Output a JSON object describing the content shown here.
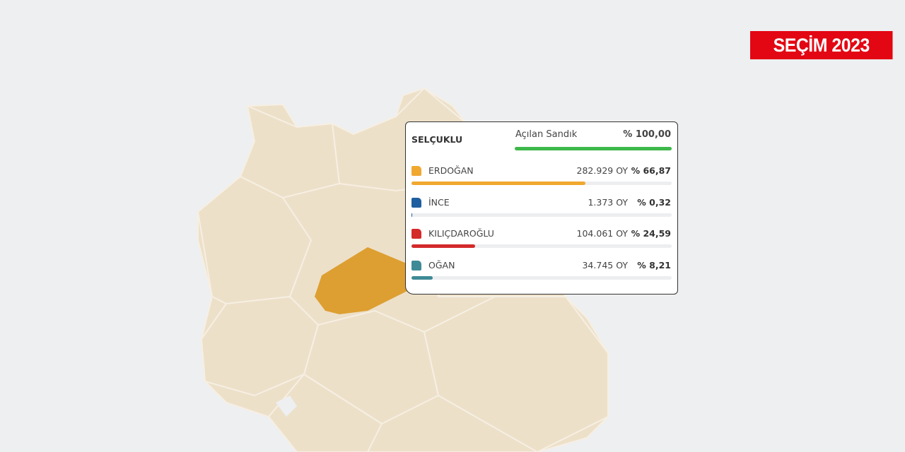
{
  "badge": "SEÇİM 2023",
  "popup": {
    "district": "SELÇUKLU",
    "opened_title": "Açılan Sandık",
    "opened_percent": 100,
    "opened_label": "% 100,00",
    "opened_color": "#3db84a",
    "candidates": [
      {
        "name": "ERDOĞAN",
        "votes_label": "282.929 OY",
        "percent": 66.87,
        "percent_label": "% 66,87",
        "color": "#f0a830"
      },
      {
        "name": "İNCE",
        "votes_label": "1.373 OY",
        "percent": 0.32,
        "percent_label": "% 0,32",
        "color": "#1f5fa0"
      },
      {
        "name": "KILIÇDAROĞLU",
        "votes_label": "104.061 OY",
        "percent": 24.59,
        "percent_label": "% 24,59",
        "color": "#d42a2a"
      },
      {
        "name": "OĞAN",
        "votes_label": "34.745 OY",
        "percent": 8.21,
        "percent_label": "% 8,21",
        "color": "#3e8a96"
      }
    ]
  }
}
